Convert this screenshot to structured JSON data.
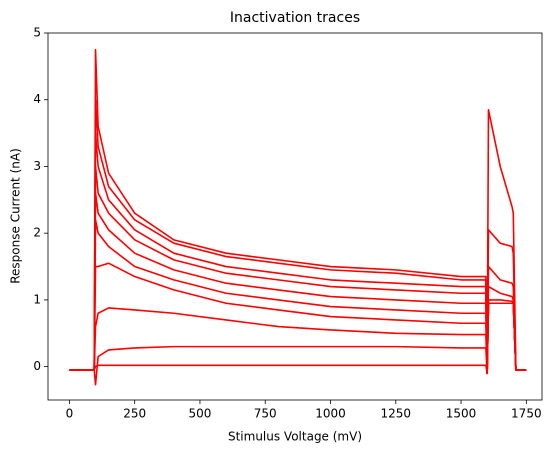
{
  "chart_data": {
    "type": "line",
    "title": "Inactivation traces",
    "x_label": "Stimulus Voltage (mV)",
    "y_label": "Response Current (nA)",
    "x": [
      0,
      95,
      100,
      110,
      150,
      250,
      400,
      600,
      800,
      1000,
      1250,
      1500,
      1595,
      1600,
      1605,
      1650,
      1695,
      1700,
      1710,
      1750
    ],
    "series": [
      {
        "color": "#ff0000",
        "values": [
          -0.05,
          -0.05,
          0.0,
          0.02,
          0.02,
          0.02,
          0.02,
          0.02,
          0.02,
          0.02,
          0.02,
          0.02,
          0.02,
          -0.1,
          0.95,
          0.95,
          0.95,
          0.95,
          -0.05,
          -0.05
        ]
      },
      {
        "color": "#ff0000",
        "values": [
          -0.05,
          -0.05,
          -0.27,
          0.15,
          0.25,
          0.28,
          0.3,
          0.3,
          0.3,
          0.3,
          0.3,
          0.28,
          0.28,
          -0.1,
          0.95,
          0.95,
          0.95,
          0.95,
          -0.05,
          -0.05
        ]
      },
      {
        "color": "#ff0000",
        "values": [
          -0.05,
          -0.05,
          0.6,
          0.8,
          0.88,
          0.85,
          0.8,
          0.7,
          0.6,
          0.55,
          0.5,
          0.48,
          0.48,
          -0.1,
          0.95,
          0.95,
          0.95,
          0.95,
          -0.05,
          -0.05
        ]
      },
      {
        "color": "#ff0000",
        "values": [
          -0.05,
          -0.05,
          1.5,
          1.5,
          1.55,
          1.35,
          1.15,
          0.95,
          0.85,
          0.75,
          0.7,
          0.65,
          0.65,
          -0.1,
          0.95,
          0.95,
          0.95,
          0.95,
          -0.05,
          -0.05
        ]
      },
      {
        "color": "#ff0000",
        "values": [
          -0.05,
          -0.05,
          2.2,
          2.0,
          1.8,
          1.5,
          1.3,
          1.1,
          1.0,
          0.9,
          0.85,
          0.8,
          0.8,
          -0.1,
          0.95,
          0.95,
          0.95,
          0.95,
          -0.05,
          -0.05
        ]
      },
      {
        "color": "#ff0000",
        "values": [
          -0.05,
          -0.05,
          2.6,
          2.3,
          2.05,
          1.7,
          1.45,
          1.25,
          1.15,
          1.05,
          1.0,
          0.95,
          0.95,
          -0.1,
          1.0,
          1.0,
          0.98,
          0.95,
          -0.05,
          -0.05
        ]
      },
      {
        "color": "#ff0000",
        "values": [
          -0.05,
          -0.05,
          3.0,
          2.6,
          2.3,
          1.9,
          1.6,
          1.4,
          1.3,
          1.2,
          1.15,
          1.1,
          1.1,
          -0.1,
          1.2,
          1.1,
          1.05,
          1.0,
          -0.05,
          -0.05
        ]
      },
      {
        "color": "#ff0000",
        "values": [
          -0.05,
          -0.05,
          3.5,
          3.0,
          2.5,
          2.05,
          1.7,
          1.5,
          1.4,
          1.3,
          1.25,
          1.2,
          1.2,
          -0.1,
          1.5,
          1.3,
          1.25,
          1.2,
          -0.05,
          -0.05
        ]
      },
      {
        "color": "#ff0000",
        "values": [
          -0.05,
          -0.05,
          4.0,
          3.3,
          2.7,
          2.2,
          1.85,
          1.65,
          1.55,
          1.45,
          1.4,
          1.3,
          1.3,
          -0.1,
          2.05,
          1.85,
          1.8,
          1.7,
          -0.05,
          -0.05
        ]
      },
      {
        "color": "#ff0000",
        "values": [
          -0.05,
          -0.05,
          4.75,
          3.6,
          2.9,
          2.3,
          1.9,
          1.7,
          1.6,
          1.5,
          1.45,
          1.35,
          1.35,
          -0.1,
          3.85,
          3.0,
          2.4,
          2.3,
          -0.05,
          -0.05
        ]
      }
    ],
    "xlim": [
      -82,
      1810
    ],
    "xticks": [
      0,
      250,
      500,
      750,
      1000,
      1250,
      1500,
      1750
    ],
    "ylim": [
      -0.5,
      5.0
    ],
    "yticks": [
      0,
      1,
      2,
      3,
      4,
      5
    ]
  }
}
